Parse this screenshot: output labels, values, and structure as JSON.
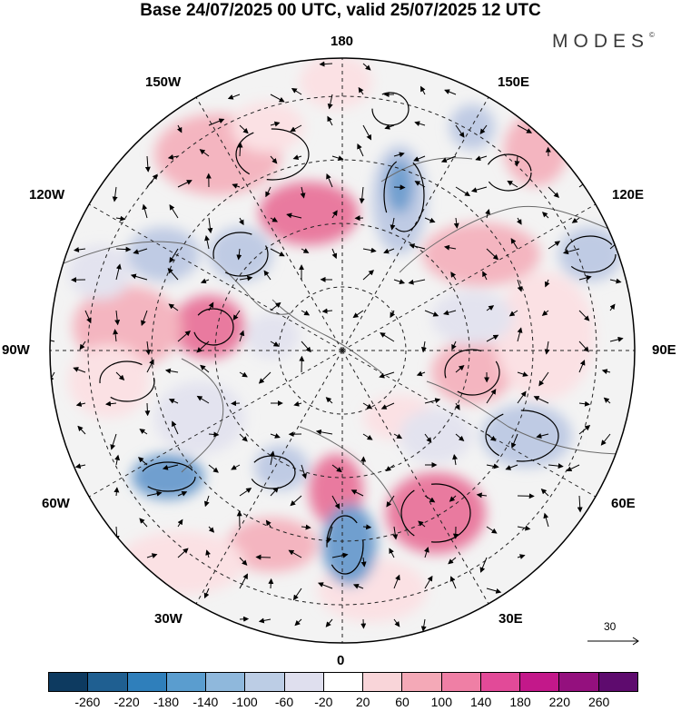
{
  "title": "Base 24/07/2025 00 UTC, valid 25/07/2025 12 UTC",
  "logo": {
    "text": "MODES",
    "mark": "©"
  },
  "longitude_labels": [
    "180",
    "150E",
    "120E",
    "90E",
    "60E",
    "30E",
    "0",
    "30W",
    "60W",
    "90W",
    "120W",
    "150W"
  ],
  "reference_vector": {
    "value": "30"
  },
  "colorbar": {
    "colors": [
      "#0d3a60",
      "#1f5f91",
      "#2f7fbb",
      "#5a9dcf",
      "#8fb8dc",
      "#bccde5",
      "#dfdfee",
      "#ffffff",
      "#f9d5d9",
      "#f4a9b7",
      "#ef7fa5",
      "#e24a98",
      "#c3188a",
      "#94107e",
      "#5e0b6e"
    ],
    "labels": [
      "-260",
      "-220",
      "-180",
      "-140",
      "-100",
      "-60",
      "-20",
      "20",
      "60",
      "100",
      "140",
      "180",
      "220",
      "260"
    ]
  },
  "map_colors": {
    "pos_weak": "#fbe1e4",
    "pos_mid": "#f4b5c0",
    "pos_strong": "#e97a9f",
    "neg_weak": "#e3e3ef",
    "neg_mid": "#bfcbe4",
    "neg_strong": "#6f9fcf",
    "land_bg": "#eeeeee"
  }
}
